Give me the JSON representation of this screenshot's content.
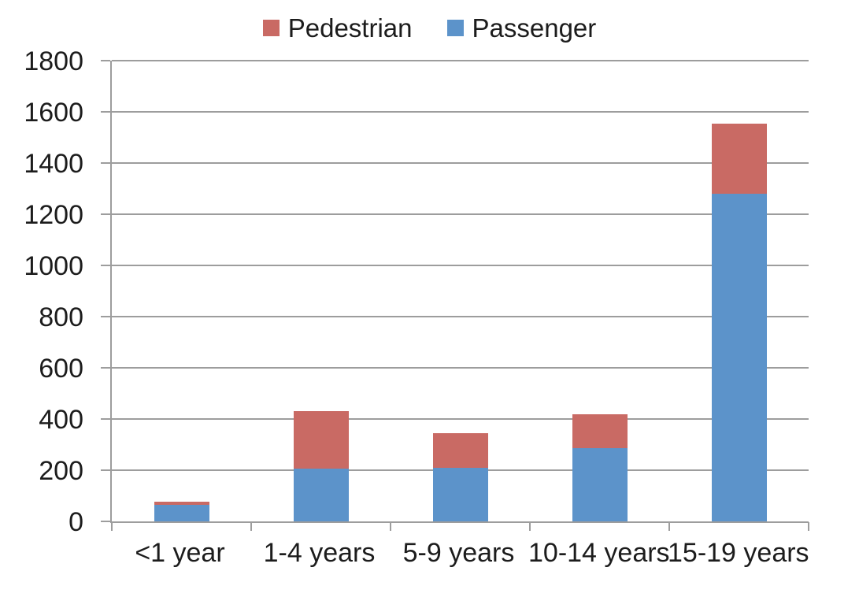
{
  "chart_data": {
    "type": "bar",
    "stacked": true,
    "title": "",
    "xlabel": "",
    "ylabel": "",
    "categories": [
      "<1 year",
      "1-4 years",
      "5-9 years",
      "10-14 years",
      "15-19 years"
    ],
    "series": [
      {
        "name": "Pedestrian",
        "color": "#c96a64",
        "values": [
          13,
          225,
          135,
          135,
          275
        ]
      },
      {
        "name": "Passenger",
        "color": "#5c93ca",
        "values": [
          65,
          205,
          210,
          285,
          1280
        ]
      }
    ],
    "stack_order_bottom_to_top": [
      "Passenger",
      "Pedestrian"
    ],
    "totals": [
      78,
      430,
      345,
      420,
      1555
    ],
    "ylim": [
      0,
      1800
    ],
    "y_ticks": [
      0,
      200,
      400,
      600,
      800,
      1000,
      1200,
      1400,
      1600,
      1800
    ],
    "grid": "horizontal",
    "legend_position": "top-center"
  },
  "colors": {
    "background": "#ffffff",
    "axis": "#9d9d9d",
    "gridline": "#9d9d9d",
    "text": "#1c1c1c",
    "pedestrian": "#c96a64",
    "passenger": "#5c93ca"
  }
}
